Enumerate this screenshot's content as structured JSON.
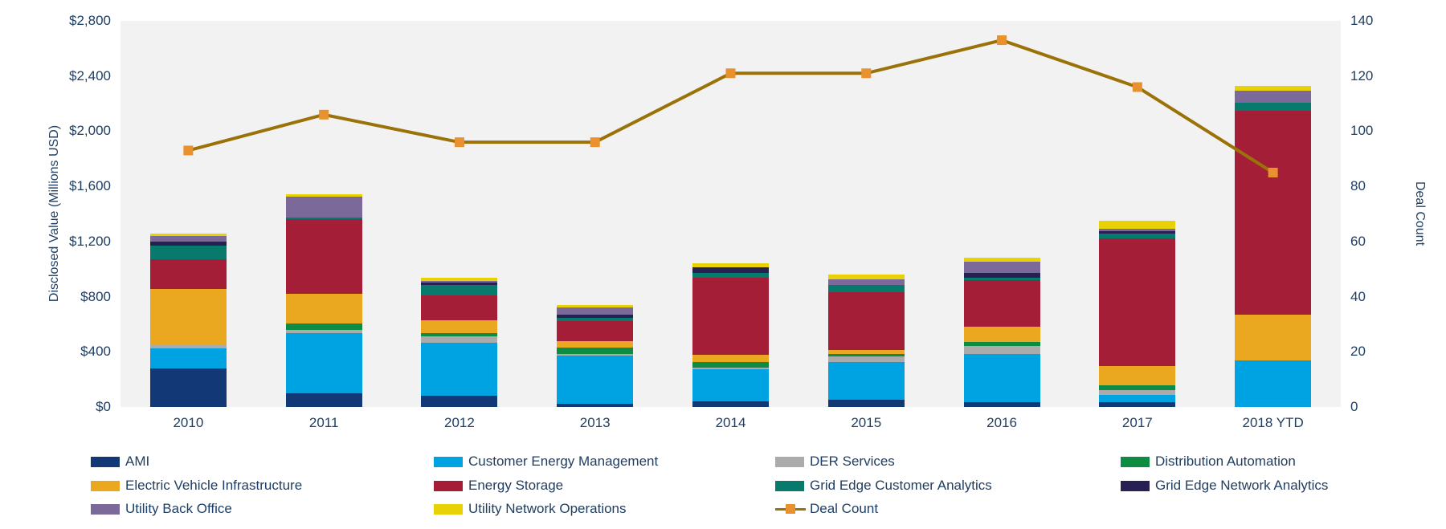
{
  "chart_data": {
    "type": "bar",
    "subtype": "stacked-bars-with-line-overlay",
    "title": "",
    "plot_bg": "#F2F2F2",
    "grid": false,
    "legend_position": "bottom",
    "categories": [
      "2010",
      "2011",
      "2012",
      "2013",
      "2014",
      "2015",
      "2016",
      "2017",
      "2018 YTD"
    ],
    "left_axis": {
      "label": "Disclosed Value (Millions USD)",
      "range": [
        0,
        2800
      ],
      "tick_values": [
        0,
        400,
        800,
        1200,
        1600,
        2000,
        2400,
        2800
      ],
      "tick_labels": [
        "$0",
        "$400",
        "$800",
        "$1,200",
        "$1,600",
        "$2,000",
        "$2,400",
        "$2,800"
      ]
    },
    "right_axis": {
      "label": "Deal Count",
      "range": [
        0,
        140
      ],
      "tick_values": [
        0,
        20,
        40,
        60,
        80,
        100,
        120,
        140
      ],
      "tick_labels": [
        "0",
        "20",
        "40",
        "60",
        "80",
        "100",
        "120",
        "140"
      ]
    },
    "series": [
      {
        "name": "AMI",
        "color": "#123876",
        "values": [
          280,
          100,
          80,
          25,
          40,
          50,
          35,
          35,
          0
        ]
      },
      {
        "name": "Customer Energy Management",
        "color": "#00A3E2",
        "values": [
          145,
          435,
          385,
          350,
          235,
          275,
          350,
          55,
          335
        ]
      },
      {
        "name": "DER Services",
        "color": "#ABABAB",
        "values": [
          25,
          25,
          50,
          10,
          10,
          40,
          55,
          35,
          0
        ]
      },
      {
        "name": "Distribution Automation",
        "color": "#0E8C43",
        "values": [
          0,
          45,
          20,
          45,
          40,
          20,
          30,
          30,
          0
        ]
      },
      {
        "name": "Electric Vehicle Infrastructure",
        "color": "#E9A820",
        "values": [
          405,
          215,
          95,
          45,
          55,
          30,
          110,
          140,
          335
        ]
      },
      {
        "name": "Energy Storage",
        "color": "#A41E37",
        "values": [
          215,
          540,
          180,
          150,
          555,
          420,
          340,
          925,
          1480
        ]
      },
      {
        "name": "Grid Edge Customer Analytics",
        "color": "#077A6D",
        "values": [
          100,
          15,
          75,
          20,
          35,
          50,
          20,
          40,
          55
        ]
      },
      {
        "name": "Grid Edge Network Analytics",
        "color": "#262152",
        "values": [
          30,
          0,
          15,
          25,
          45,
          0,
          30,
          15,
          0
        ]
      },
      {
        "name": "Utility Back Office",
        "color": "#7B6A99",
        "values": [
          40,
          150,
          15,
          50,
          0,
          40,
          85,
          20,
          90
        ]
      },
      {
        "name": "Utility Network Operations",
        "color": "#E8D106",
        "values": [
          15,
          15,
          20,
          20,
          25,
          35,
          30,
          55,
          35
        ]
      }
    ],
    "line_series": {
      "name": "Deal Count",
      "axis": "right",
      "line_color": "#9A7208",
      "marker_color": "#E9912E",
      "values": [
        93,
        106,
        96,
        96,
        121,
        121,
        133,
        116,
        85
      ]
    },
    "legend_items": [
      "AMI",
      "Customer Energy Management",
      "DER Services",
      "Distribution Automation",
      "Electric Vehicle Infrastructure",
      "Energy Storage",
      "Grid Edge Customer Analytics",
      "Grid Edge Network Analytics",
      "Utility Back Office",
      "Utility Network Operations",
      "Deal Count"
    ]
  }
}
